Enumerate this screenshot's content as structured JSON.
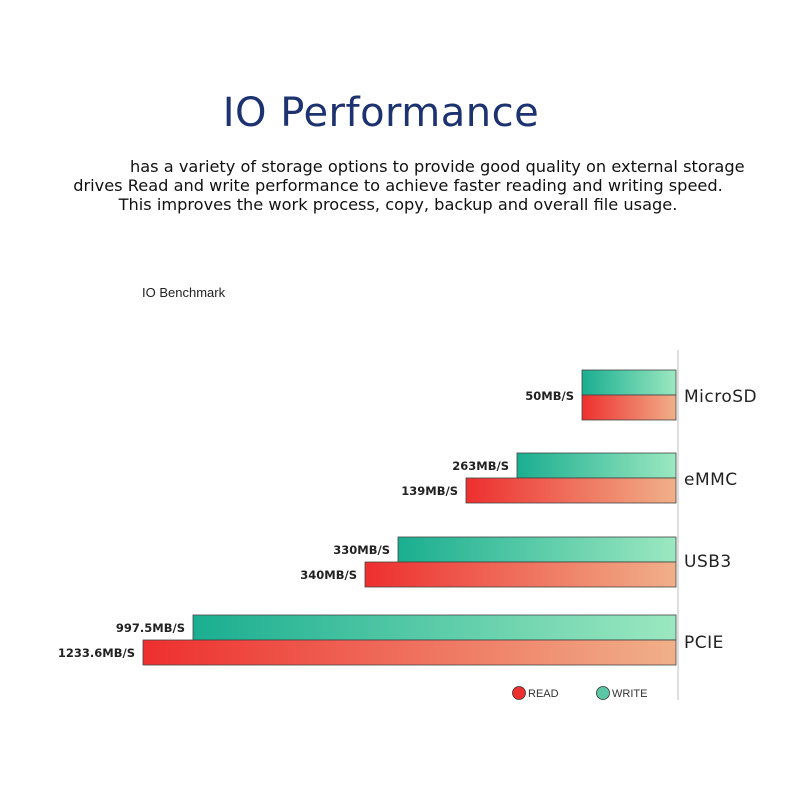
{
  "header": {
    "title": "IO Performance",
    "description_lines": [
      "has a variety of storage options to provide good quality on external storage",
      "drives Read and write performance to achieve faster reading and writing speed.",
      "This improves the work process, copy, backup and overall file usage."
    ]
  },
  "chart_data": {
    "type": "bar",
    "orientation": "horizontal",
    "title": "IO Benchmark",
    "categories": [
      "MicroSD",
      "eMMC",
      "USB3",
      "PCIE"
    ],
    "series": [
      {
        "name": "WRITE",
        "values": [
          null,
          263,
          330,
          997.5
        ],
        "labels": [
          "",
          "263MB/S",
          "330MB/S",
          "997.5MB/S"
        ],
        "color_start": "#1aae90",
        "color_end": "#9be8c0"
      },
      {
        "name": "READ",
        "values": [
          50,
          139,
          340,
          1233.6
        ],
        "labels": [
          "50MB/S",
          "139MB/S",
          "340MB/S",
          "1233.6MB/S"
        ],
        "color_start": "#ee2f2f",
        "color_end": "#f0b08a"
      }
    ],
    "legend": {
      "placement": "bottom",
      "items": [
        "READ",
        "WRITE"
      ]
    },
    "grid": false
  }
}
